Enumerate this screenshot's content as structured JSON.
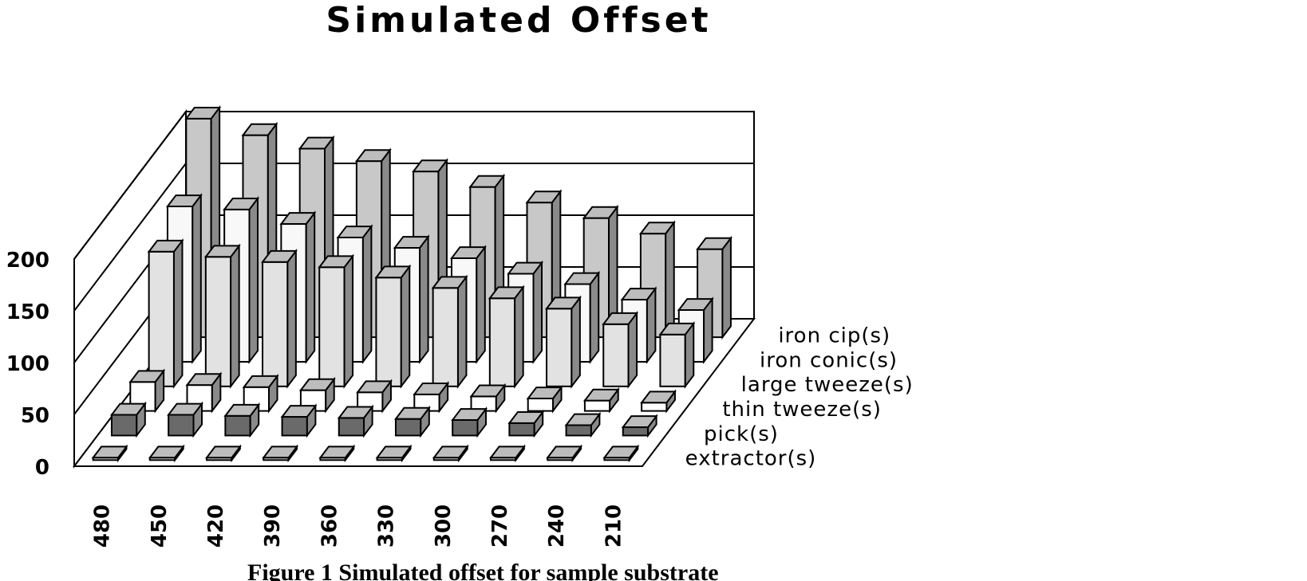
{
  "chart_data": {
    "type": "bar",
    "title": "Simulated Offset",
    "categories": [
      "480",
      "450",
      "420",
      "390",
      "360",
      "330",
      "300",
      "270",
      "240",
      "210"
    ],
    "series": [
      {
        "name": "extractor(s)",
        "values": [
          2,
          2,
          2,
          2,
          2,
          2,
          2,
          2,
          2,
          2
        ]
      },
      {
        "name": "pick(s)",
        "values": [
          20,
          20,
          19,
          18,
          17,
          16,
          15,
          12,
          10,
          8
        ]
      },
      {
        "name": "thin tweeze(s)",
        "values": [
          28,
          25,
          23,
          20,
          18,
          16,
          14,
          12,
          10,
          8
        ]
      },
      {
        "name": "large tweeze(s)",
        "values": [
          130,
          125,
          120,
          115,
          105,
          95,
          85,
          75,
          60,
          50
        ]
      },
      {
        "name": "iron conic(s)",
        "values": [
          150,
          147,
          133,
          120,
          110,
          100,
          85,
          75,
          60,
          50
        ]
      },
      {
        "name": "iron cip(s)",
        "values": [
          211,
          195,
          182,
          170,
          160,
          145,
          130,
          115,
          100,
          85
        ]
      }
    ],
    "y_ticks": [
      "0",
      "50",
      "100",
      "150",
      "200"
    ],
    "ylim": [
      0,
      200
    ],
    "grid": true,
    "colors": {
      "extractor(s)": "#ffffff",
      "pick(s)": "#6a6a6a",
      "thin tweeze(s)": "#ffffff",
      "large tweeze(s)": "#e2e2e2",
      "iron conic(s)": "#f8f8f8",
      "iron cip(s)": "#c8c8c8"
    }
  },
  "caption": "Figure 1 Simulated offset for sample substrate"
}
